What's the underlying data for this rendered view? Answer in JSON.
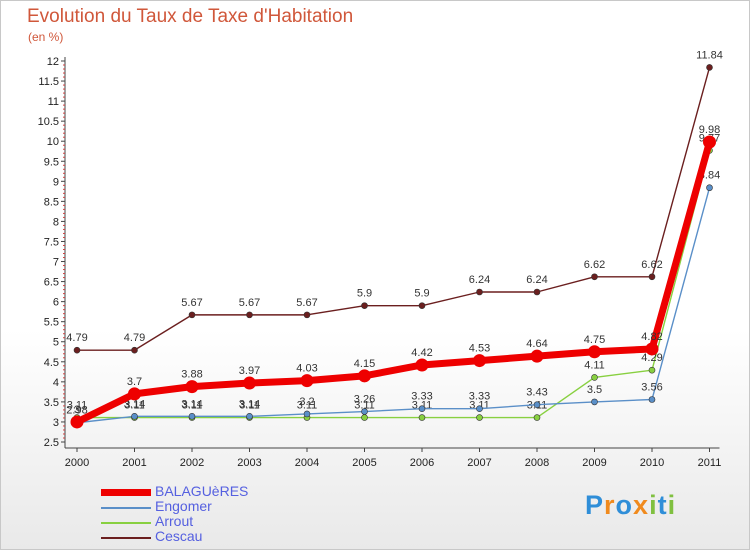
{
  "header": {
    "title": "Evolution du Taux de Taxe d'Habitation",
    "unit": "(en %)"
  },
  "colors": {
    "BALAGUèRES": "#ee0000",
    "Engomer": "#5a8fc8",
    "Arrout": "#88d040",
    "Cescau": "#6b1f1f",
    "title": "#d0573a"
  },
  "logo": {
    "letters": [
      "P",
      "r",
      "o",
      "x",
      "i",
      "t",
      "i"
    ],
    "letter_colors": [
      "#2f8ed8",
      "#f08a1d",
      "#2f8ed8",
      "#f08a1d",
      "#80c040",
      "#2f8ed8",
      "#80c040"
    ]
  },
  "chart_data": {
    "type": "line",
    "title": "Evolution du Taux de Taxe d'Habitation",
    "ylabel": "(en %)",
    "xlabel": "",
    "ylim": [
      2.5,
      12
    ],
    "yticks": [
      "2.5",
      "3",
      "3.5",
      "4",
      "4.5",
      "5",
      "5.5",
      "6",
      "6.5",
      "7",
      "7.5",
      "8",
      "8.5",
      "9",
      "9.5",
      "10",
      "10.5",
      "11",
      "11.5",
      "12"
    ],
    "x": [
      "2000",
      "2001",
      "2002",
      "2003",
      "2004",
      "2005",
      "2006",
      "2007",
      "2008",
      "2009",
      "2010",
      "2011"
    ],
    "grid": false,
    "legend": "bottom-left",
    "series": [
      {
        "name": "Cescau",
        "values": [
          4.79,
          4.79,
          5.67,
          5.67,
          5.67,
          5.9,
          5.9,
          6.24,
          6.24,
          6.62,
          6.62,
          11.84
        ],
        "labels": [
          "4.79",
          "4.79",
          "5.67",
          "5.67",
          "5.67",
          "5.9",
          "5.9",
          "6.24",
          "6.24",
          "6.62",
          "6.62",
          "11.84"
        ]
      },
      {
        "name": "Arrout",
        "values": [
          3.11,
          3.11,
          3.11,
          3.11,
          3.11,
          3.11,
          3.11,
          3.11,
          3.11,
          4.11,
          4.29,
          9.77
        ],
        "labels": [
          "3.11",
          "3.11",
          "3.11",
          "3.11",
          "3.11",
          "3.11",
          "3.11",
          "3.11",
          "3.11",
          "4.11",
          "4.29",
          "9.77"
        ]
      },
      {
        "name": "Engomer",
        "values": [
          2.98,
          3.14,
          3.14,
          3.14,
          3.2,
          3.26,
          3.33,
          3.33,
          3.43,
          3.5,
          3.56,
          8.84
        ],
        "labels": [
          "2.98",
          "3.14",
          "3.14",
          "3.14",
          "3.2",
          "3.26",
          "3.33",
          "3.33",
          "3.43",
          "3.5",
          "3.56",
          "8.84"
        ]
      },
      {
        "name": "BALAGUèRES",
        "values": [
          3.0,
          3.7,
          3.88,
          3.97,
          4.03,
          4.15,
          4.42,
          4.53,
          4.64,
          4.75,
          4.82,
          9.98
        ],
        "labels": [
          "3",
          "3.7",
          "3.88",
          "3.97",
          "4.03",
          "4.15",
          "4.42",
          "4.53",
          "4.64",
          "4.75",
          "4.82",
          "9.98"
        ]
      }
    ],
    "legend_order": [
      "BALAGUèRES",
      "Engomer",
      "Arrout",
      "Cescau"
    ]
  }
}
